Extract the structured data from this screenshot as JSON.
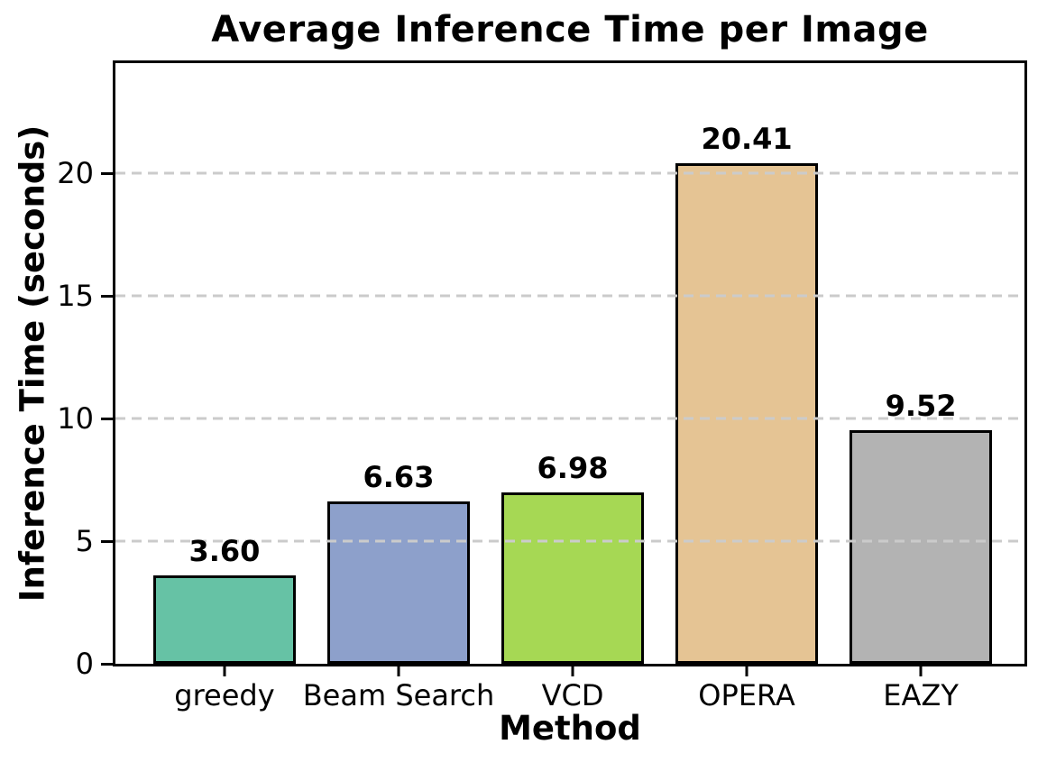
{
  "chart_data": {
    "type": "bar",
    "title": "Average Inference Time per Image",
    "xlabel": "Method",
    "ylabel": "Inference Time (seconds)",
    "categories": [
      "greedy",
      "Beam Search",
      "VCD",
      "OPERA",
      "EAZY"
    ],
    "values": [
      3.6,
      6.63,
      6.98,
      20.41,
      9.52
    ],
    "value_labels": [
      "3.60",
      "6.63",
      "6.98",
      "20.41",
      "9.52"
    ],
    "bar_colors": [
      "#66c2a5",
      "#8da0cb",
      "#a6d854",
      "#e5c494",
      "#b3b3b3"
    ],
    "bar_edge_color": "#000000",
    "ylim": [
      0,
      24.49
    ],
    "yticks": [
      0,
      5,
      10,
      15,
      20
    ],
    "ytick_labels": [
      "0",
      "5",
      "10",
      "15",
      "20"
    ],
    "grid": "horizontal dashed lines at yticks, drawn above bars",
    "gridline_color": "#cbcbcb",
    "frame_color": "#000000",
    "background": "#ffffff",
    "legend": "none"
  }
}
